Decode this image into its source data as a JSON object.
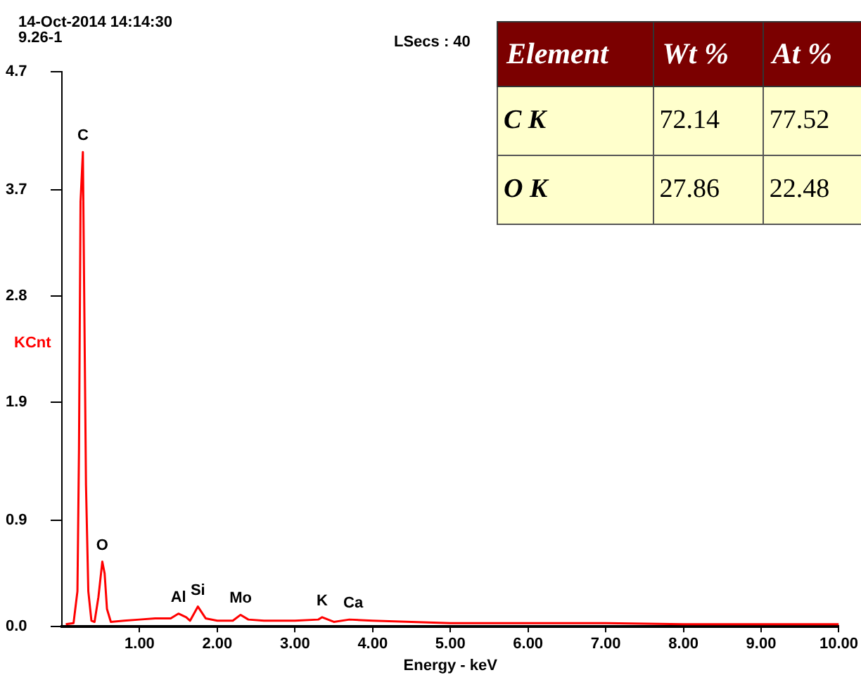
{
  "chart_data": {
    "type": "line",
    "title": "14-Oct-2014 14:14:30",
    "subtitle": "9.26-1",
    "xlabel": "Energy - keV",
    "ylabel": "KCnt",
    "x": [
      0.05,
      0.15,
      0.2,
      0.22,
      0.24,
      0.27,
      0.29,
      0.31,
      0.34,
      0.38,
      0.42,
      0.47,
      0.52,
      0.55,
      0.58,
      0.63,
      0.8,
      1.0,
      1.2,
      1.4,
      1.5,
      1.6,
      1.65,
      1.75,
      1.85,
      2.0,
      2.2,
      2.3,
      2.4,
      2.6,
      3.0,
      3.3,
      3.35,
      3.5,
      3.7,
      4.0,
      5.0,
      6.0,
      7.0,
      8.0,
      9.0,
      10.0
    ],
    "series": [
      {
        "color": "#ff0000",
        "values": [
          0.02,
          0.03,
          0.3,
          1.5,
          3.6,
          4.02,
          2.6,
          1.2,
          0.3,
          0.05,
          0.04,
          0.25,
          0.55,
          0.45,
          0.15,
          0.04,
          0.05,
          0.06,
          0.07,
          0.07,
          0.11,
          0.08,
          0.05,
          0.17,
          0.07,
          0.05,
          0.05,
          0.1,
          0.06,
          0.05,
          0.05,
          0.06,
          0.08,
          0.04,
          0.06,
          0.05,
          0.03,
          0.03,
          0.03,
          0.02,
          0.02,
          0.02
        ]
      }
    ],
    "xlim": [
      0,
      10
    ],
    "xticks": [
      {
        "value": 1,
        "label": "1.00"
      },
      {
        "value": 2,
        "label": "2.00"
      },
      {
        "value": 3,
        "label": "3.00"
      },
      {
        "value": 4,
        "label": "4.00"
      },
      {
        "value": 5,
        "label": "5.00"
      },
      {
        "value": 6,
        "label": "6.00"
      },
      {
        "value": 7,
        "label": "7.00"
      },
      {
        "value": 8,
        "label": "8.00"
      },
      {
        "value": 9,
        "label": "9.00"
      },
      {
        "value": 10,
        "label": "10.00"
      }
    ],
    "ylim": [
      0,
      4.7
    ],
    "yticks": [
      {
        "value": 0,
        "label": "0.0"
      },
      {
        "value": 0.9,
        "label": "0.9"
      },
      {
        "value": 1.9,
        "label": "1.9"
      },
      {
        "value": 2.8,
        "label": "2.8"
      },
      {
        "value": 3.7,
        "label": "3.7"
      },
      {
        "value": 4.7,
        "label": "4.7"
      }
    ],
    "grid": false,
    "legend": false,
    "marker": "none",
    "line_style": "solid",
    "annotations": [
      "LSecs : 40",
      "Element",
      "Wt %",
      "At %",
      "C K",
      "72.14",
      "77.52",
      "O K",
      "27.86",
      "22.48",
      {
        "text": "C",
        "x": 0.27,
        "y": 4.02
      },
      {
        "text": "O",
        "x": 0.52,
        "y": 0.55
      },
      {
        "text": "Al",
        "x": 1.5,
        "y": 0.11
      },
      {
        "text": "Si",
        "x": 1.75,
        "y": 0.17
      },
      {
        "text": "Mo",
        "x": 2.3,
        "y": 0.1
      },
      {
        "text": "K",
        "x": 3.35,
        "y": 0.08
      },
      {
        "text": "Ca",
        "x": 3.75,
        "y": 0.06
      }
    ]
  }
}
